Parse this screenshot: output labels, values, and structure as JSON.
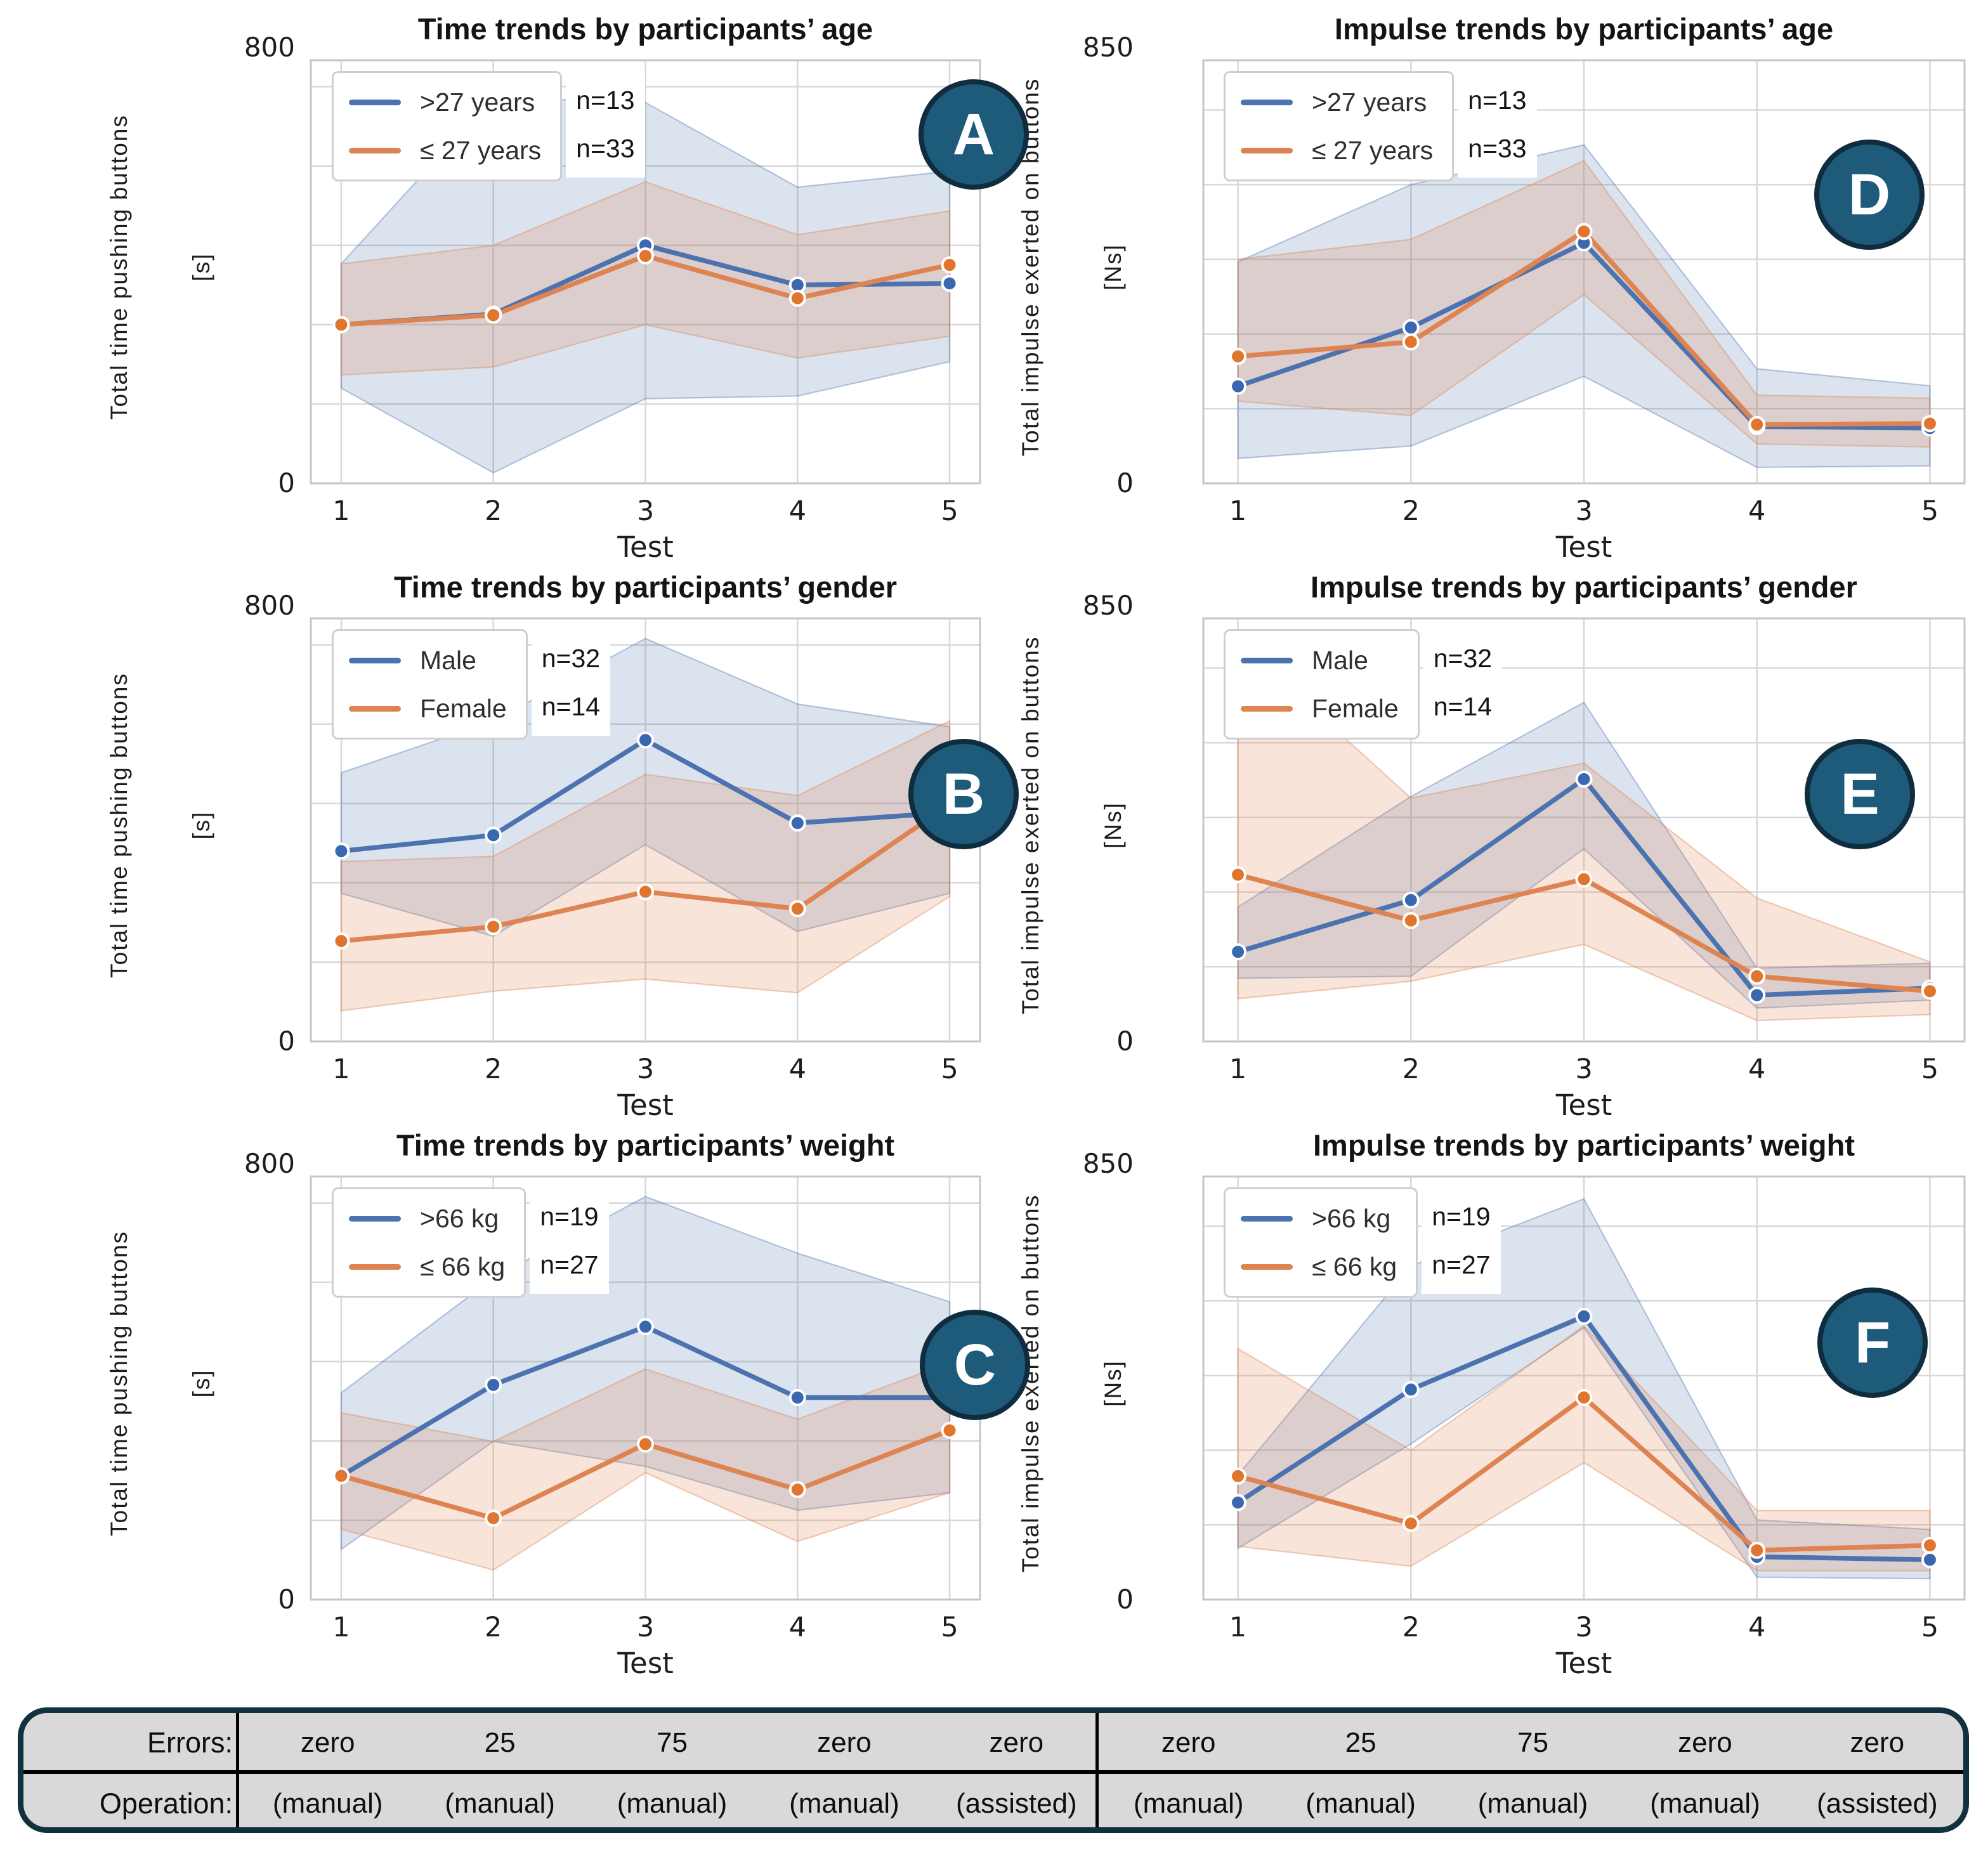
{
  "colors": {
    "blue": "#4C72B0",
    "orange": "#DD8452",
    "blue_marker": "#3A68B0",
    "orange_marker": "#E0762E",
    "blue_band": "rgba(76,114,176,0.20)",
    "orange_band": "rgba(221,132,82,0.22)",
    "blue_band_edge": "rgba(76,114,176,0.38)",
    "orange_band_edge": "rgba(221,132,82,0.40)",
    "grid": "#D8D8D8",
    "axis_border": "#C6C6C6",
    "badge_fill": "#1E5A7A",
    "badge_edge": "#0F2D3F",
    "table_bg": "#D9D9D9",
    "table_border": "#12313F"
  },
  "chart_data": [
    {
      "type": "line",
      "badge": "A",
      "col": "left",
      "title": "Time trends by participants’ age",
      "ylabel": "Total time pushing buttons",
      "yunit": "[s]",
      "ymax": 800,
      "ymax_label": "800",
      "ymin_label": "0",
      "xlabel": "Test",
      "xticks": [
        "1",
        "2",
        "3",
        "4",
        "5"
      ],
      "legend": [
        {
          "label": ">27 years",
          "n": "n=13",
          "color": "blue"
        },
        {
          "label": "≤  27 years",
          "n": "n=33",
          "color": "orange"
        }
      ],
      "series": [
        {
          "name": ">27 years",
          "color": "blue",
          "mean": [
            300,
            320,
            450,
            375,
            378
          ],
          "upper": [
            415,
            730,
            720,
            560,
            590
          ],
          "lower": [
            180,
            20,
            160,
            165,
            230
          ]
        },
        {
          "name": "≤ 27 years",
          "color": "orange",
          "mean": [
            300,
            318,
            430,
            350,
            413
          ],
          "upper": [
            415,
            450,
            570,
            470,
            515
          ],
          "lower": [
            205,
            220,
            300,
            237,
            278
          ]
        }
      ]
    },
    {
      "type": "line",
      "badge": "B",
      "col": "left",
      "title": "Time trends by participants’ gender",
      "ylabel": "Total time pushing buttons",
      "yunit": "[s]",
      "ymax": 800,
      "ymax_label": "800",
      "ymin_label": "0",
      "xlabel": "Test",
      "xticks": [
        "1",
        "2",
        "3",
        "4",
        "5"
      ],
      "legend": [
        {
          "label": "Male",
          "n": "n=32",
          "color": "blue"
        },
        {
          "label": "Female",
          "n": "n=14",
          "color": "orange"
        }
      ],
      "series": [
        {
          "name": "Male",
          "color": "blue",
          "mean": [
            360,
            390,
            570,
            413,
            433
          ],
          "upper": [
            508,
            606,
            762,
            638,
            595
          ],
          "lower": [
            280,
            199,
            372,
            208,
            280
          ]
        },
        {
          "name": "Female",
          "color": "orange",
          "mean": [
            190,
            217,
            283,
            251,
            448
          ],
          "upper": [
            340,
            350,
            505,
            465,
            606
          ],
          "lower": [
            58,
            95,
            118,
            92,
            274
          ]
        }
      ]
    },
    {
      "type": "line",
      "badge": "C",
      "col": "left",
      "title": "Time trends by participants’ weight",
      "ylabel": "Total time pushing buttons",
      "yunit": "[s]",
      "ymax": 800,
      "ymax_label": "800",
      "ymin_label": "0",
      "xlabel": "Test",
      "xticks": [
        "1",
        "2",
        "3",
        "4",
        "5"
      ],
      "legend": [
        {
          "label": ">66 kg",
          "n": "n=19",
          "color": "blue"
        },
        {
          "label": "≤  66 kg",
          "n": "n=27",
          "color": "orange"
        }
      ],
      "series": [
        {
          "name": ">66 kg",
          "color": "blue",
          "mean": [
            234,
            406,
            516,
            382,
            382
          ],
          "upper": [
            391,
            608,
            762,
            655,
            563
          ],
          "lower": [
            95,
            299,
            252,
            169,
            202
          ]
        },
        {
          "name": "≤ 66 kg",
          "color": "orange",
          "mean": [
            234,
            154,
            294,
            208,
            320
          ],
          "upper": [
            353,
            299,
            436,
            341,
            448
          ],
          "lower": [
            133,
            56,
            240,
            110,
            202
          ]
        }
      ]
    },
    {
      "type": "line",
      "badge": "D",
      "col": "right",
      "title": "Impulse trends by participants’ age",
      "ylabel": "Total impulse exerted on buttons",
      "yunit": "[Ns]",
      "ymax": 850,
      "ymax_label": "850",
      "ymin_label": "0",
      "xlabel": "Test",
      "xticks": [
        "1",
        "2",
        "3",
        "4",
        "5"
      ],
      "legend": [
        {
          "label": ">27 years",
          "n": "n=13",
          "color": "blue"
        },
        {
          "label": "≤  27 years",
          "n": "n=33",
          "color": "orange"
        }
      ],
      "series": [
        {
          "name": ">27 years",
          "color": "blue",
          "mean": [
            195,
            313,
            483,
            114,
            111
          ],
          "upper": [
            445,
            600,
            680,
            230,
            196
          ],
          "lower": [
            50,
            75,
            215,
            32,
            35
          ]
        },
        {
          "name": "≤ 27 years",
          "color": "orange",
          "mean": [
            255,
            284,
            506,
            118,
            120
          ],
          "upper": [
            450,
            490,
            648,
            177,
            171
          ],
          "lower": [
            165,
            136,
            379,
            79,
            73
          ]
        }
      ]
    },
    {
      "type": "line",
      "badge": "E",
      "col": "right",
      "title": "Impulse trends by participants’ gender",
      "ylabel": "Total impulse exerted on buttons",
      "yunit": "[Ns]",
      "ymax": 850,
      "ymax_label": "850",
      "ymin_label": "0",
      "xlabel": "Test",
      "xticks": [
        "1",
        "2",
        "3",
        "4",
        "5"
      ],
      "legend": [
        {
          "label": "Male",
          "n": "n=32",
          "color": "blue"
        },
        {
          "label": "Female",
          "n": "n=14",
          "color": "orange"
        }
      ],
      "series": [
        {
          "name": "Male",
          "color": "blue",
          "mean": [
            180,
            284,
            527,
            93,
            107
          ],
          "upper": [
            270,
            492,
            681,
            147,
            157
          ],
          "lower": [
            127,
            131,
            387,
            67,
            83
          ]
        },
        {
          "name": "Female",
          "color": "orange",
          "mean": [
            335,
            243,
            326,
            131,
            101
          ],
          "upper": [
            805,
            489,
            559,
            288,
            160
          ],
          "lower": [
            86,
            121,
            195,
            42,
            54
          ]
        }
      ]
    },
    {
      "type": "line",
      "badge": "F",
      "col": "right",
      "title": "Impulse trends by participants’ weight",
      "ylabel": "Total impulse exerted on buttons",
      "yunit": "[Ns]",
      "ymax": 850,
      "ymax_label": "850",
      "ymin_label": "0",
      "xlabel": "Test",
      "xticks": [
        "1",
        "2",
        "3",
        "4",
        "5"
      ],
      "legend": [
        {
          "label": ">66 kg",
          "n": "n=19",
          "color": "blue"
        },
        {
          "label": "≤  66 kg",
          "n": "n=27",
          "color": "orange"
        }
      ],
      "series": [
        {
          "name": ">66 kg",
          "color": "blue",
          "mean": [
            195,
            422,
            569,
            86,
            80
          ],
          "upper": [
            250,
            670,
            805,
            160,
            141
          ],
          "lower": [
            103,
            313,
            546,
            45,
            42
          ]
        },
        {
          "name": "≤ 66 kg",
          "color": "orange",
          "mean": [
            248,
            153,
            406,
            99,
            109
          ],
          "upper": [
            504,
            300,
            550,
            179,
            179
          ],
          "lower": [
            107,
            67,
            275,
            58,
            58
          ]
        }
      ]
    }
  ],
  "table": {
    "errors_label": "Errors:",
    "operation_label": "Operation:",
    "errors_left": [
      "zero",
      "25",
      "75",
      "zero",
      "zero"
    ],
    "errors_right": [
      "zero",
      "25",
      "75",
      "zero",
      "zero"
    ],
    "operation_left": [
      "(manual)",
      "(manual)",
      "(manual)",
      "(manual)",
      "(assisted)"
    ],
    "operation_right": [
      "(manual)",
      "(manual)",
      "(manual)",
      "(manual)",
      "(assisted)"
    ]
  }
}
